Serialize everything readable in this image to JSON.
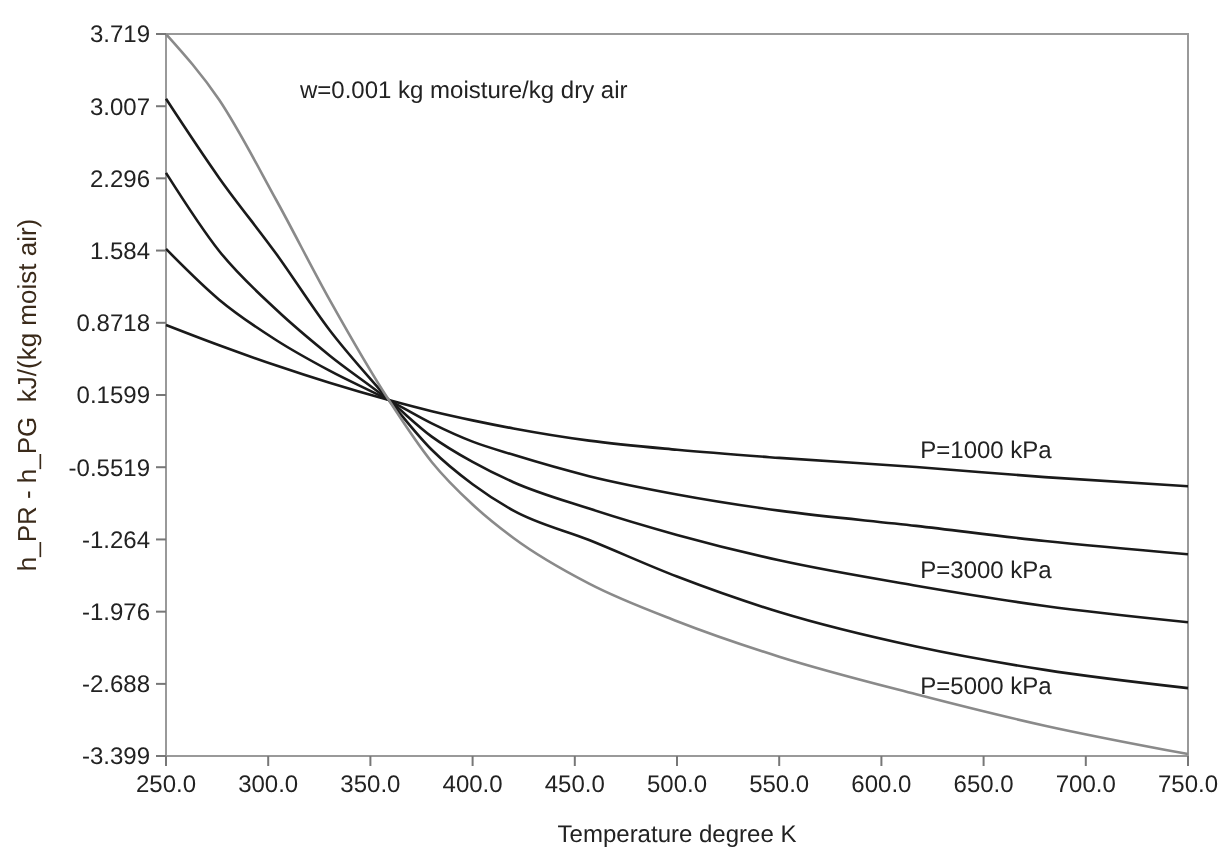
{
  "chart_data": {
    "type": "line",
    "xlabel": "Temperature degree K",
    "ylabel": "h_PR - h_PG  kJ/(kg moist air)",
    "annotations": [
      "w=0.001 kg moisture/kg dry air",
      "P=1000 kPa",
      "P=3000 kPa",
      "P=5000 kPa"
    ],
    "x": [
      250,
      276,
      304,
      330,
      359,
      380,
      400,
      420,
      457,
      500,
      550,
      617,
      680,
      750
    ],
    "series": [
      {
        "color": "#1a1a1a",
        "values": [
          0.85,
          0.65,
          0.45,
          0.28,
          0.11,
          0.0,
          -0.09,
          -0.17,
          -0.29,
          -0.38,
          -0.46,
          -0.55,
          -0.65,
          -0.74
        ]
      },
      {
        "color": "#1a1a1a",
        "values": [
          1.6,
          1.1,
          0.7,
          0.4,
          0.11,
          -0.12,
          -0.3,
          -0.43,
          -0.64,
          -0.82,
          -0.98,
          -1.13,
          -1.28,
          -1.41
        ]
      },
      {
        "color": "#1a1a1a",
        "values": [
          2.35,
          1.58,
          1.0,
          0.55,
          0.11,
          -0.25,
          -0.5,
          -0.7,
          -0.96,
          -1.22,
          -1.47,
          -1.72,
          -1.92,
          -2.08
        ]
      },
      {
        "color": "#1a1a1a",
        "values": [
          3.08,
          2.3,
          1.55,
          0.8,
          0.11,
          -0.38,
          -0.72,
          -0.98,
          -1.27,
          -1.63,
          -1.98,
          -2.32,
          -2.55,
          -2.73
        ]
      },
      {
        "color": "#8a8a8a",
        "values": [
          3.719,
          3.07,
          2.08,
          1.1,
          0.11,
          -0.5,
          -0.92,
          -1.25,
          -1.7,
          -2.07,
          -2.42,
          -2.79,
          -3.1,
          -3.38
        ]
      }
    ],
    "xlim": [
      250,
      750
    ],
    "ylim": [
      -3.399,
      3.719
    ],
    "xticks": [
      {
        "value": 250,
        "label": "250.0"
      },
      {
        "value": 300,
        "label": "300.0"
      },
      {
        "value": 350,
        "label": "350.0"
      },
      {
        "value": 400,
        "label": "400.0"
      },
      {
        "value": 450,
        "label": "450.0"
      },
      {
        "value": 500,
        "label": "500.0"
      },
      {
        "value": 550,
        "label": "550.0"
      },
      {
        "value": 600,
        "label": "600.0"
      },
      {
        "value": 650,
        "label": "650.0"
      },
      {
        "value": 700,
        "label": "700.0"
      },
      {
        "value": 750,
        "label": "750.0"
      }
    ],
    "yticks": [
      3.719,
      3.007,
      2.296,
      1.584,
      0.8718,
      0.1599,
      -0.5519,
      -1.264,
      -1.976,
      -2.688,
      -3.399
    ],
    "grid": false,
    "marker": "none",
    "line_style": "solid"
  }
}
